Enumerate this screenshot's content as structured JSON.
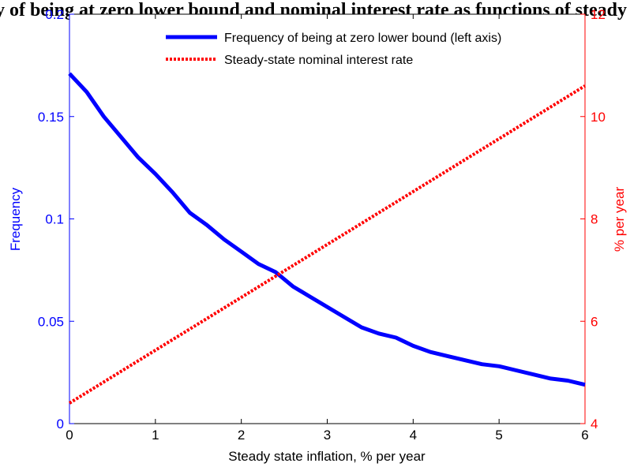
{
  "chart_data": {
    "type": "line",
    "title": "y of being at zero lower bound and nominal interest rate as functions of steady state inflation",
    "xlabel": "Steady state inflation, % per year",
    "ylabel_left": "Frequency",
    "ylabel_right": "% per year",
    "xlim": [
      0,
      6
    ],
    "ylim_left": [
      0,
      0.2
    ],
    "ylim_right": [
      4,
      12
    ],
    "x_ticks": [
      "0",
      "1",
      "2",
      "3",
      "4",
      "5",
      "6"
    ],
    "y_left_ticks": [
      "0",
      "0.05",
      "0.1",
      "0.15",
      "0.2"
    ],
    "y_right_ticks": [
      "4",
      "6",
      "8",
      "10",
      "12"
    ],
    "grid": false,
    "legend_position": "top-right",
    "colors": {
      "left_axis": "#0000ff",
      "right_axis": "#ff0000",
      "series_1": "#0000ff",
      "series_2": "#ff0000"
    },
    "series": [
      {
        "name": "Frequency of being at zero lower bound (left axis)",
        "axis": "left",
        "style": "solid",
        "x": [
          0,
          0.2,
          0.4,
          0.6,
          0.8,
          1.0,
          1.2,
          1.4,
          1.6,
          1.8,
          2.0,
          2.2,
          2.4,
          2.6,
          2.8,
          3.0,
          3.2,
          3.4,
          3.6,
          3.8,
          4.0,
          4.2,
          4.4,
          4.6,
          4.8,
          5.0,
          5.2,
          5.4,
          5.6,
          5.8,
          6.0
        ],
        "values": [
          0.171,
          0.162,
          0.15,
          0.14,
          0.13,
          0.122,
          0.113,
          0.103,
          0.097,
          0.09,
          0.084,
          0.078,
          0.074,
          0.067,
          0.062,
          0.057,
          0.052,
          0.047,
          0.044,
          0.042,
          0.038,
          0.035,
          0.033,
          0.031,
          0.029,
          0.028,
          0.026,
          0.024,
          0.022,
          0.021,
          0.019
        ]
      },
      {
        "name": "Steady-state nominal interest rate",
        "axis": "right",
        "style": "dotted",
        "x": [
          0,
          6
        ],
        "values": [
          4.4,
          10.6
        ]
      }
    ]
  }
}
